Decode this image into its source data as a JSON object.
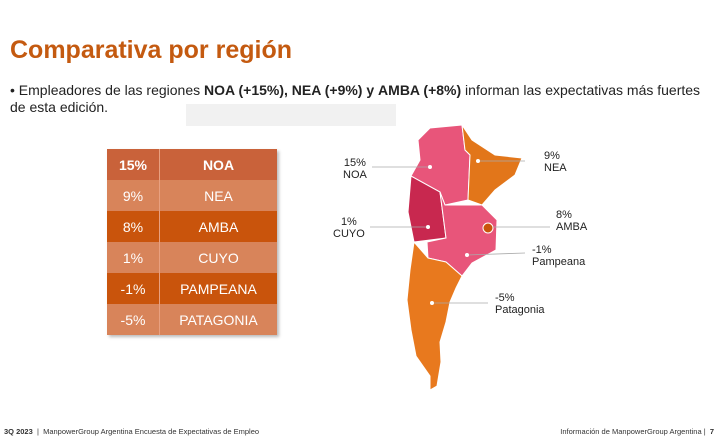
{
  "title": "Comparativa por región",
  "bullet": {
    "prefix": "•  Empleadores de las regiones ",
    "noa": "NOA (+15%),",
    "nea": "NEA (+9%)",
    "y": "y",
    "amba": "AMBA (+8%)",
    "suffix": " informan las expectativas más fuertes de esta edición."
  },
  "table": [
    {
      "value": "15%",
      "region": "NOA"
    },
    {
      "value": "9%",
      "region": "NEA"
    },
    {
      "value": "8%",
      "region": "AMBA"
    },
    {
      "value": "1%",
      "region": "CUYO"
    },
    {
      "value": "-1%",
      "region": "PAMPEANA"
    },
    {
      "value": "-5%",
      "region": "PATAGONIA"
    }
  ],
  "map_labels": {
    "noa": {
      "value": "15%",
      "name": "NOA"
    },
    "nea": {
      "value": "9%",
      "name": "NEA"
    },
    "cuyo": {
      "value": "1%",
      "name": "CUYO"
    },
    "amba": {
      "value": "8%",
      "name": "AMBA"
    },
    "pampeana": {
      "value": "-1%",
      "name": "Pampeana"
    },
    "patagonia": {
      "value": "-5%",
      "name": "Patagonia"
    }
  },
  "colors": {
    "accent": "#c45a10",
    "pink": "#e8557a",
    "orange": "#e8791e",
    "dark_pink": "#c8284f"
  },
  "footer": {
    "left_bold": "3Q 2023",
    "left": "ManpowerGroup Argentina Encuesta de Expectativas de Empleo",
    "right": "Información de ManpowerGroup Argentina",
    "page": "7"
  }
}
